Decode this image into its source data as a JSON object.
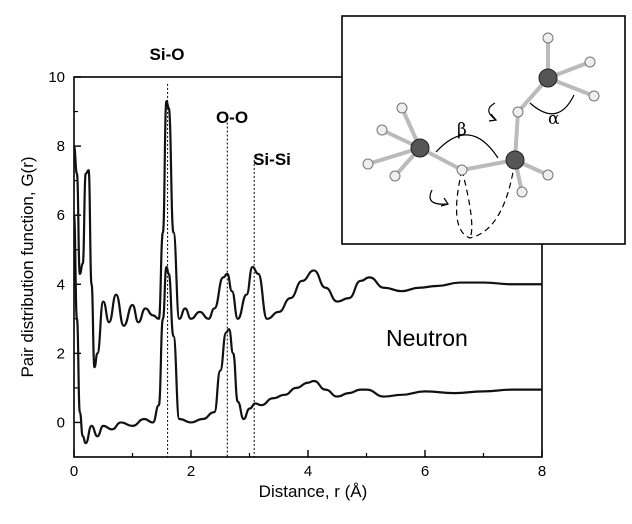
{
  "chart_data": {
    "type": "line",
    "title": "",
    "xlabel": "Distance, r (Å)",
    "ylabel": "Pair distribution function, G(r)",
    "xlim": [
      0,
      8
    ],
    "ylim": [
      -1,
      10
    ],
    "x_ticks": [
      "0",
      "2",
      "4",
      "6",
      "8"
    ],
    "y_ticks": [
      "0",
      "2",
      "4",
      "6",
      "8",
      "10"
    ],
    "grid": false,
    "legend": "none",
    "series": [
      {
        "points": [
          [
            0.0,
            8.0
          ],
          [
            0.05,
            7.2
          ],
          [
            0.1,
            4.3
          ],
          [
            0.15,
            4.6
          ],
          [
            0.2,
            7.2
          ],
          [
            0.25,
            7.3
          ],
          [
            0.3,
            4.0
          ],
          [
            0.35,
            1.6
          ],
          [
            0.4,
            2.0
          ],
          [
            0.5,
            3.5
          ],
          [
            0.6,
            2.9
          ],
          [
            0.72,
            3.7
          ],
          [
            0.85,
            2.8
          ],
          [
            1.0,
            3.4
          ],
          [
            1.1,
            2.9
          ],
          [
            1.22,
            3.3
          ],
          [
            1.35,
            3.1
          ],
          [
            1.45,
            3.0
          ],
          [
            1.52,
            5.5
          ],
          [
            1.58,
            9.3
          ],
          [
            1.62,
            9.1
          ],
          [
            1.7,
            5.5
          ],
          [
            1.8,
            3.0
          ],
          [
            1.9,
            3.3
          ],
          [
            2.0,
            3.0
          ],
          [
            2.15,
            3.2
          ],
          [
            2.3,
            3.0
          ],
          [
            2.4,
            3.3
          ],
          [
            2.55,
            4.2
          ],
          [
            2.62,
            4.3
          ],
          [
            2.7,
            3.8
          ],
          [
            2.8,
            3.0
          ],
          [
            2.95,
            3.7
          ],
          [
            3.05,
            4.5
          ],
          [
            3.15,
            4.3
          ],
          [
            3.3,
            3.0
          ],
          [
            3.5,
            3.2
          ],
          [
            3.7,
            3.6
          ],
          [
            3.9,
            4.1
          ],
          [
            4.1,
            4.4
          ],
          [
            4.3,
            3.9
          ],
          [
            4.5,
            3.5
          ],
          [
            4.7,
            3.6
          ],
          [
            4.9,
            4.1
          ],
          [
            5.05,
            4.2
          ],
          [
            5.3,
            3.9
          ],
          [
            5.6,
            3.8
          ],
          [
            5.9,
            3.9
          ],
          [
            6.2,
            3.95
          ],
          [
            6.6,
            4.05
          ],
          [
            7.0,
            4.05
          ],
          [
            7.5,
            4.0
          ],
          [
            8.0,
            4.0
          ]
        ]
      },
      {
        "points": [
          [
            0.0,
            6.0
          ],
          [
            0.05,
            3.0
          ],
          [
            0.1,
            0.3
          ],
          [
            0.15,
            -0.4
          ],
          [
            0.2,
            -0.6
          ],
          [
            0.3,
            -0.1
          ],
          [
            0.4,
            -0.4
          ],
          [
            0.5,
            -0.1
          ],
          [
            0.65,
            -0.2
          ],
          [
            0.8,
            0.0
          ],
          [
            1.0,
            -0.1
          ],
          [
            1.2,
            0.1
          ],
          [
            1.35,
            0.0
          ],
          [
            1.45,
            0.5
          ],
          [
            1.52,
            3.0
          ],
          [
            1.58,
            4.5
          ],
          [
            1.62,
            4.3
          ],
          [
            1.7,
            2.5
          ],
          [
            1.8,
            0.1
          ],
          [
            2.0,
            0.0
          ],
          [
            2.2,
            0.1
          ],
          [
            2.4,
            0.3
          ],
          [
            2.5,
            1.5
          ],
          [
            2.6,
            2.6
          ],
          [
            2.65,
            2.7
          ],
          [
            2.72,
            2.0
          ],
          [
            2.8,
            0.6
          ],
          [
            2.9,
            0.1
          ],
          [
            3.0,
            0.4
          ],
          [
            3.1,
            0.55
          ],
          [
            3.2,
            0.5
          ],
          [
            3.4,
            0.7
          ],
          [
            3.6,
            0.8
          ],
          [
            3.8,
            1.0
          ],
          [
            4.0,
            1.15
          ],
          [
            4.1,
            1.2
          ],
          [
            4.3,
            0.95
          ],
          [
            4.5,
            0.75
          ],
          [
            4.7,
            0.85
          ],
          [
            4.9,
            0.95
          ],
          [
            5.0,
            0.95
          ],
          [
            5.3,
            0.75
          ],
          [
            5.6,
            0.8
          ],
          [
            6.0,
            0.9
          ],
          [
            6.5,
            0.85
          ],
          [
            7.0,
            0.9
          ],
          [
            7.5,
            0.95
          ],
          [
            8.0,
            0.95
          ]
        ]
      }
    ],
    "reference_lines": [
      {
        "label": "Si-O",
        "x": 1.6
      },
      {
        "label": "O-O",
        "x": 2.62
      },
      {
        "label": "Si-Si",
        "x": 3.08
      }
    ],
    "annotation": "Neutron"
  },
  "inset": {
    "greek_beta": "β",
    "greek_alpha": "α"
  }
}
